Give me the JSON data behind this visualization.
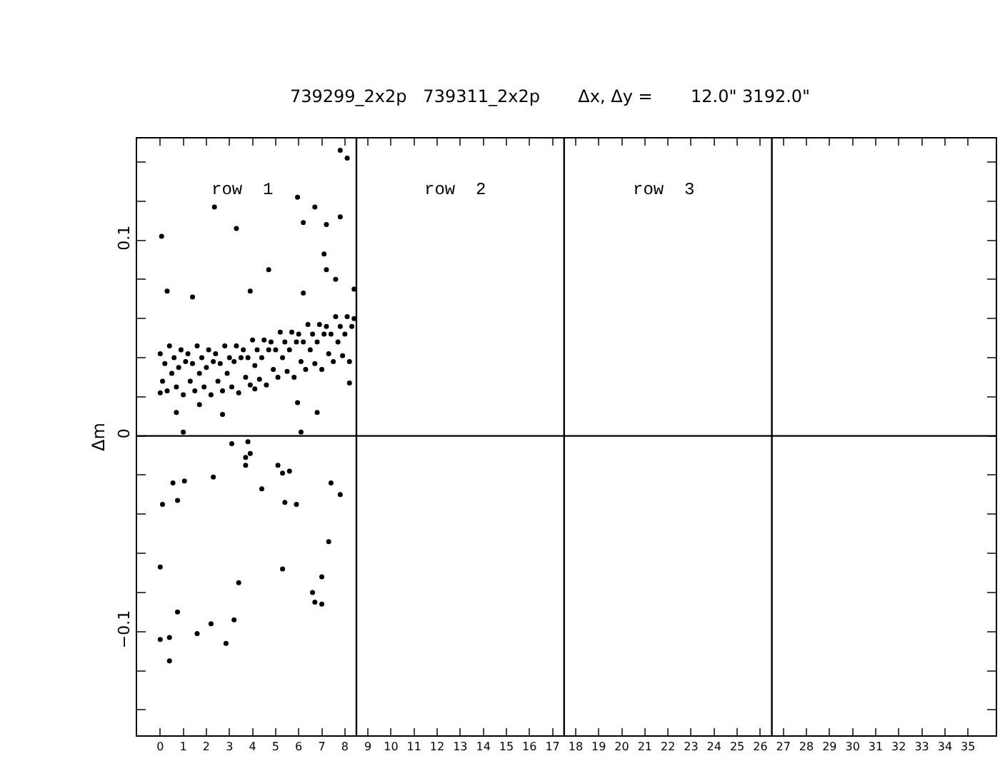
{
  "chart_data": {
    "type": "scatter",
    "title": "739299_2x2p   739311_2x2p       Δx, Δy =       12.0\" 3192.0\"",
    "ylabel": "Δm",
    "x": [
      0.0,
      0.1,
      0.2,
      0.3,
      0.4,
      0.5,
      0.6,
      0.7,
      0.8,
      0.9,
      1.0,
      1.1,
      1.2,
      1.3,
      1.4,
      1.5,
      1.6,
      1.7,
      1.8,
      1.9,
      2.0,
      2.1,
      2.2,
      2.3,
      2.4,
      2.5,
      2.6,
      2.7,
      2.8,
      2.9,
      3.0,
      3.1,
      3.2,
      3.3,
      3.4,
      3.5,
      3.6,
      3.7,
      3.8,
      3.9,
      4.0,
      4.1,
      4.2,
      4.3,
      4.4,
      4.5,
      4.6,
      4.7,
      4.8,
      4.9,
      5.0,
      5.1,
      5.2,
      5.3,
      5.4,
      5.5,
      5.6,
      5.7,
      5.8,
      5.9,
      6.0,
      6.1,
      6.2,
      6.3,
      6.4,
      6.5,
      6.6,
      6.7,
      6.8,
      6.9,
      7.0,
      7.1,
      7.2,
      7.3,
      7.4,
      7.5,
      7.6,
      7.7,
      7.8,
      7.9,
      8.0,
      8.1,
      8.2,
      8.3,
      8.4,
      7.8,
      8.1,
      2.35,
      3.3,
      0.06,
      6.2,
      6.7,
      7.2,
      7.8,
      5.95,
      4.7,
      7.1,
      7.2,
      0.3,
      1.4,
      3.9,
      6.2,
      7.6,
      8.4,
      0.0,
      0.7,
      1.7,
      2.7,
      4.1,
      5.95,
      6.8,
      6.1,
      8.2,
      1.0,
      3.8,
      3.1,
      3.9,
      3.7,
      3.7,
      5.1,
      5.3,
      5.6,
      1.05,
      2.3,
      0.55,
      0.75,
      0.1,
      4.4,
      5.4,
      5.9,
      7.4,
      7.8,
      7.3,
      0.0,
      5.3,
      3.4,
      7.0,
      6.6,
      6.7,
      7.0,
      0.75,
      2.2,
      3.2,
      1.6,
      0.0,
      0.4,
      2.85,
      0.4
    ],
    "values": [
      0.042,
      0.028,
      0.037,
      0.023,
      0.046,
      0.032,
      0.04,
      0.025,
      0.035,
      0.044,
      0.021,
      0.038,
      0.042,
      0.028,
      0.037,
      0.023,
      0.046,
      0.032,
      0.04,
      0.025,
      0.035,
      0.044,
      0.021,
      0.038,
      0.042,
      0.028,
      0.037,
      0.023,
      0.046,
      0.032,
      0.04,
      0.025,
      0.038,
      0.046,
      0.022,
      0.04,
      0.044,
      0.03,
      0.04,
      0.026,
      0.049,
      0.036,
      0.044,
      0.029,
      0.04,
      0.049,
      0.026,
      0.044,
      0.048,
      0.034,
      0.044,
      0.03,
      0.053,
      0.04,
      0.048,
      0.033,
      0.044,
      0.053,
      0.03,
      0.048,
      0.052,
      0.038,
      0.048,
      0.034,
      0.057,
      0.044,
      0.052,
      0.037,
      0.048,
      0.057,
      0.034,
      0.052,
      0.056,
      0.042,
      0.052,
      0.038,
      0.061,
      0.048,
      0.056,
      0.041,
      0.052,
      0.061,
      0.038,
      0.056,
      0.06,
      0.146,
      0.142,
      0.117,
      0.106,
      0.102,
      0.109,
      0.117,
      0.108,
      0.112,
      0.122,
      0.085,
      0.093,
      0.085,
      0.074,
      0.071,
      0.074,
      0.073,
      0.08,
      0.075,
      0.022,
      0.012,
      0.016,
      0.011,
      0.024,
      0.017,
      0.012,
      0.002,
      0.027,
      0.002,
      -0.003,
      -0.004,
      -0.009,
      -0.011,
      -0.015,
      -0.015,
      -0.019,
      -0.018,
      -0.023,
      -0.021,
      -0.024,
      -0.033,
      -0.035,
      -0.027,
      -0.034,
      -0.035,
      -0.024,
      -0.03,
      -0.054,
      -0.067,
      -0.068,
      -0.075,
      -0.072,
      -0.08,
      -0.085,
      -0.086,
      -0.09,
      -0.096,
      -0.094,
      -0.101,
      -0.104,
      -0.103,
      -0.106,
      -0.115
    ],
    "color": "#000000",
    "marker": "circle",
    "xlim": [
      -1,
      36.2
    ],
    "xticks": [
      0,
      1,
      2,
      3,
      4,
      5,
      6,
      7,
      8,
      9,
      10,
      11,
      12,
      13,
      14,
      15,
      16,
      17,
      18,
      19,
      20,
      21,
      22,
      23,
      24,
      25,
      26,
      27,
      28,
      29,
      30,
      31,
      32,
      33,
      34,
      35
    ],
    "ylim": [
      -0.153,
      0.152
    ],
    "yticks": [
      {
        "value": -0.14,
        "label": null
      },
      {
        "value": -0.12,
        "label": null
      },
      {
        "value": -0.1,
        "label": "−0.1"
      },
      {
        "value": -0.08,
        "label": null
      },
      {
        "value": -0.06,
        "label": null
      },
      {
        "value": -0.04,
        "label": null
      },
      {
        "value": -0.02,
        "label": null
      },
      {
        "value": 0,
        "label": "0"
      },
      {
        "value": 0.02,
        "label": null
      },
      {
        "value": 0.04,
        "label": null
      },
      {
        "value": 0.06,
        "label": null
      },
      {
        "value": 0.08,
        "label": null
      },
      {
        "value": 0.1,
        "label": "0.1"
      },
      {
        "value": 0.12,
        "label": null
      },
      {
        "value": 0.14,
        "label": null
      }
    ],
    "ref_lines": [
      {
        "axis": "y",
        "value": 0,
        "color": "#000000"
      },
      {
        "axis": "x",
        "value": 8.5,
        "color": "#000000"
      },
      {
        "axis": "x",
        "value": 17.5,
        "color": "#000000"
      },
      {
        "axis": "x",
        "value": 26.5,
        "color": "#000000"
      }
    ],
    "annotations": [
      "row  1",
      "row  2",
      "row  3"
    ],
    "legend": false
  }
}
